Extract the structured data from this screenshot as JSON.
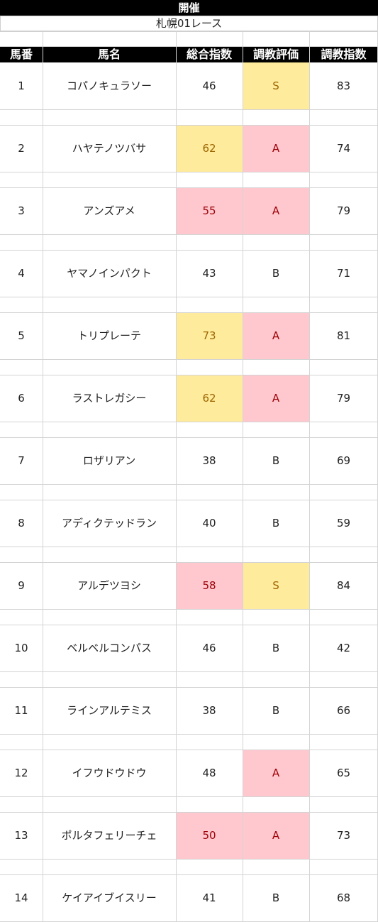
{
  "header": {
    "venue": "開催",
    "race": "札幌01レース"
  },
  "columns": [
    "馬番",
    "馬名",
    "総合指数",
    "調教評価",
    "調教指数"
  ],
  "colors": {
    "yellow_bg": "#ffeb9c",
    "yellow_text": "#9c6500",
    "pink_bg": "#ffc7ce",
    "pink_text": "#9c0006"
  },
  "rows": [
    {
      "num": "1",
      "name": "コパノキュラソー",
      "total": "46",
      "eval": "S",
      "train": "83",
      "total_hl": "",
      "eval_hl": "yellow"
    },
    {
      "num": "2",
      "name": "ハヤテノツバサ",
      "total": "62",
      "eval": "A",
      "train": "74",
      "total_hl": "yellow",
      "eval_hl": "pink"
    },
    {
      "num": "3",
      "name": "アンズアメ",
      "total": "55",
      "eval": "A",
      "train": "79",
      "total_hl": "pink",
      "eval_hl": "pink"
    },
    {
      "num": "4",
      "name": "ヤマノインパクト",
      "total": "43",
      "eval": "B",
      "train": "71",
      "total_hl": "",
      "eval_hl": ""
    },
    {
      "num": "5",
      "name": "トリプレーテ",
      "total": "73",
      "eval": "A",
      "train": "81",
      "total_hl": "yellow",
      "eval_hl": "pink"
    },
    {
      "num": "6",
      "name": "ラストレガシー",
      "total": "62",
      "eval": "A",
      "train": "79",
      "total_hl": "yellow",
      "eval_hl": "pink"
    },
    {
      "num": "7",
      "name": "ロザリアン",
      "total": "38",
      "eval": "B",
      "train": "69",
      "total_hl": "",
      "eval_hl": ""
    },
    {
      "num": "8",
      "name": "アディクテッドラン",
      "total": "40",
      "eval": "B",
      "train": "59",
      "total_hl": "",
      "eval_hl": ""
    },
    {
      "num": "9",
      "name": "アルデツヨシ",
      "total": "58",
      "eval": "S",
      "train": "84",
      "total_hl": "pink",
      "eval_hl": "yellow"
    },
    {
      "num": "10",
      "name": "ベルベルコンパス",
      "total": "46",
      "eval": "B",
      "train": "42",
      "total_hl": "",
      "eval_hl": ""
    },
    {
      "num": "11",
      "name": "ラインアルテミス",
      "total": "38",
      "eval": "B",
      "train": "66",
      "total_hl": "",
      "eval_hl": ""
    },
    {
      "num": "12",
      "name": "イフウドウドウ",
      "total": "48",
      "eval": "A",
      "train": "65",
      "total_hl": "",
      "eval_hl": "pink"
    },
    {
      "num": "13",
      "name": "ポルタフェリーチェ",
      "total": "50",
      "eval": "A",
      "train": "73",
      "total_hl": "pink",
      "eval_hl": "pink"
    },
    {
      "num": "14",
      "name": "ケイアイブイスリー",
      "total": "41",
      "eval": "B",
      "train": "68",
      "total_hl": "",
      "eval_hl": ""
    }
  ]
}
